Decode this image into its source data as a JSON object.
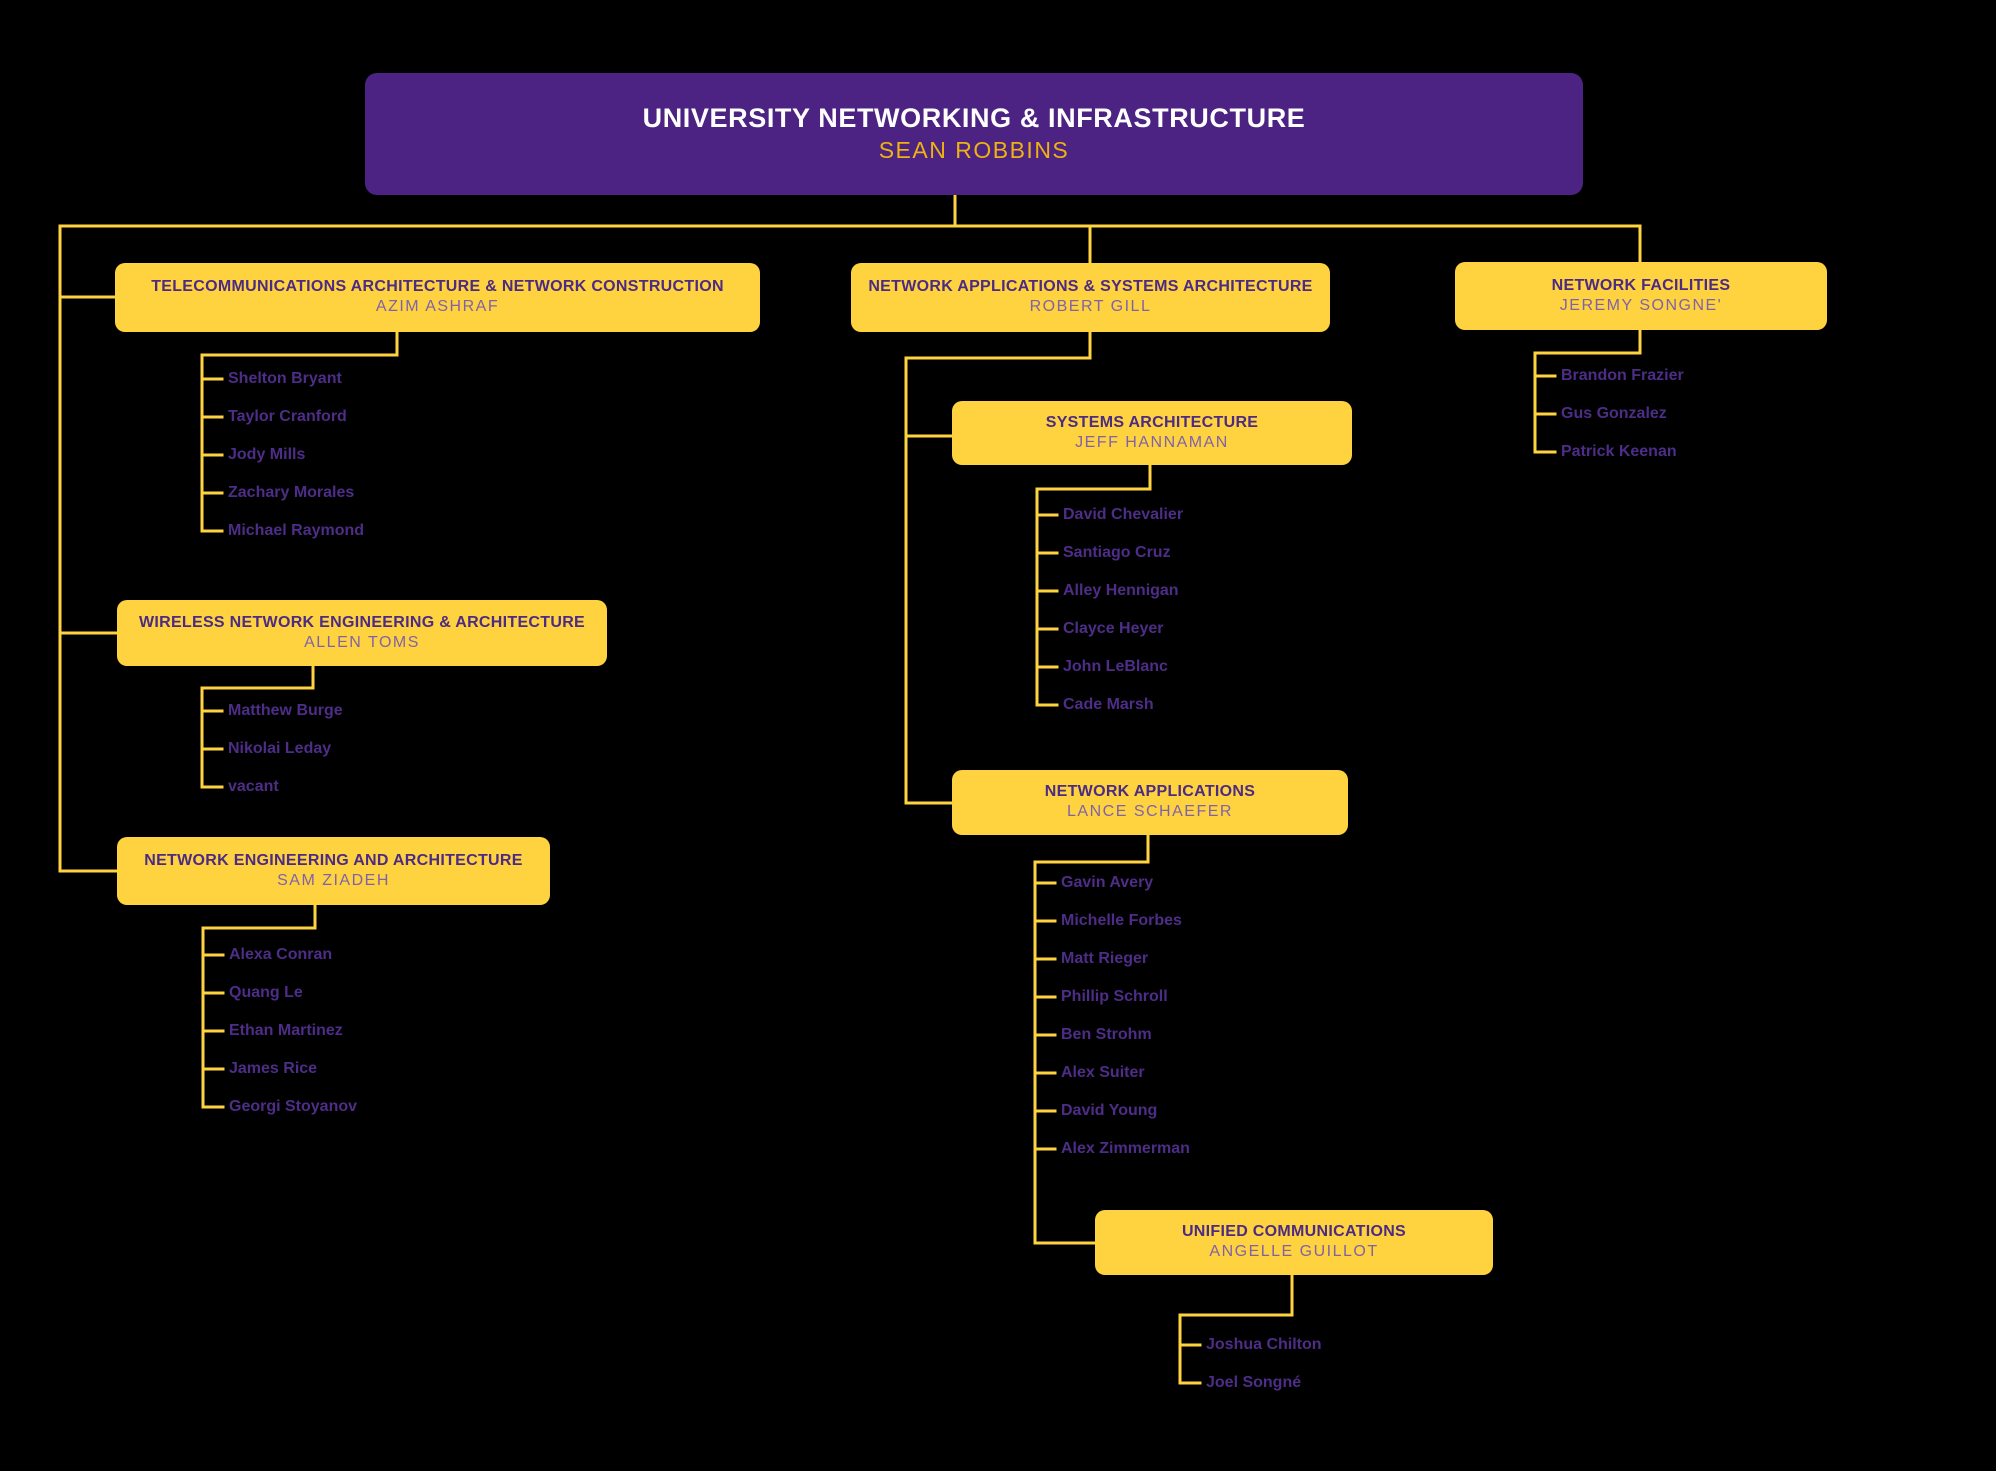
{
  "chart_title": "University Networking & Infrastructure organizational chart",
  "colors": {
    "background": "#000000",
    "box_yellow": "#ffd23f",
    "box_purple": "#4c2383",
    "title_purple": "#4b2b83",
    "lead_purple": "#7f63a9",
    "root_title": "#ffffff",
    "root_lead_gold": "#eeb211",
    "member_purple": "#4d2d87",
    "connector_yellow": "#ffd23f"
  },
  "root": {
    "title": "UNIVERSITY NETWORKING & INFRASTRUCTURE",
    "name": "SEAN ROBBINS"
  },
  "departments": [
    {
      "id": "telecom",
      "title": "TELECOMMUNICATIONS ARCHITECTURE & NETWORK CONSTRUCTION",
      "lead": "AZIM ASHRAF",
      "members": [
        "Shelton Bryant",
        "Taylor Cranford",
        "Jody Mills",
        "Zachary Morales",
        "Michael Raymond"
      ]
    },
    {
      "id": "wireless",
      "title": "WIRELESS NETWORK ENGINEERING & ARCHITECTURE",
      "lead": "ALLEN TOMS",
      "members": [
        "Matthew Burge",
        "Nikolai Leday",
        "vacant"
      ]
    },
    {
      "id": "neteng",
      "title": "NETWORK ENGINEERING AND ARCHITECTURE",
      "lead": "SAM ZIADEH",
      "members": [
        "Alexa Conran",
        "Quang Le",
        "Ethan Martinez",
        "James Rice",
        "Georgi Stoyanov"
      ]
    },
    {
      "id": "gill",
      "title": "NETWORK APPLICATIONS & SYSTEMS ARCHITECTURE",
      "lead": "ROBERT GILL",
      "members": []
    },
    {
      "id": "sysarch",
      "title": "SYSTEMS ARCHITECTURE",
      "lead": "JEFF HANNAMAN",
      "members": [
        "David Chevalier",
        "Santiago Cruz",
        "Alley Hennigan",
        "Clayce Heyer",
        "John LeBlanc",
        "Cade Marsh"
      ]
    },
    {
      "id": "netapps",
      "title": "NETWORK APPLICATIONS",
      "lead": "LANCE SCHAEFER",
      "members": [
        "Gavin Avery",
        "Michelle Forbes",
        "Matt Rieger",
        "Phillip Schroll",
        "Ben Strohm",
        "Alex Suiter",
        "David Young",
        "Alex Zimmerman"
      ]
    },
    {
      "id": "unified",
      "title": "UNIFIED COMMUNICATIONS",
      "lead": "ANGELLE GUILLOT",
      "members": [
        "Joshua Chilton",
        "Joel Songné"
      ]
    },
    {
      "id": "facilities",
      "title": "NETWORK FACILITIES",
      "lead": "JEREMY SONGNE'",
      "members": [
        "Brandon Frazier",
        "Gus Gonzalez",
        "Patrick Keenan"
      ]
    }
  ]
}
